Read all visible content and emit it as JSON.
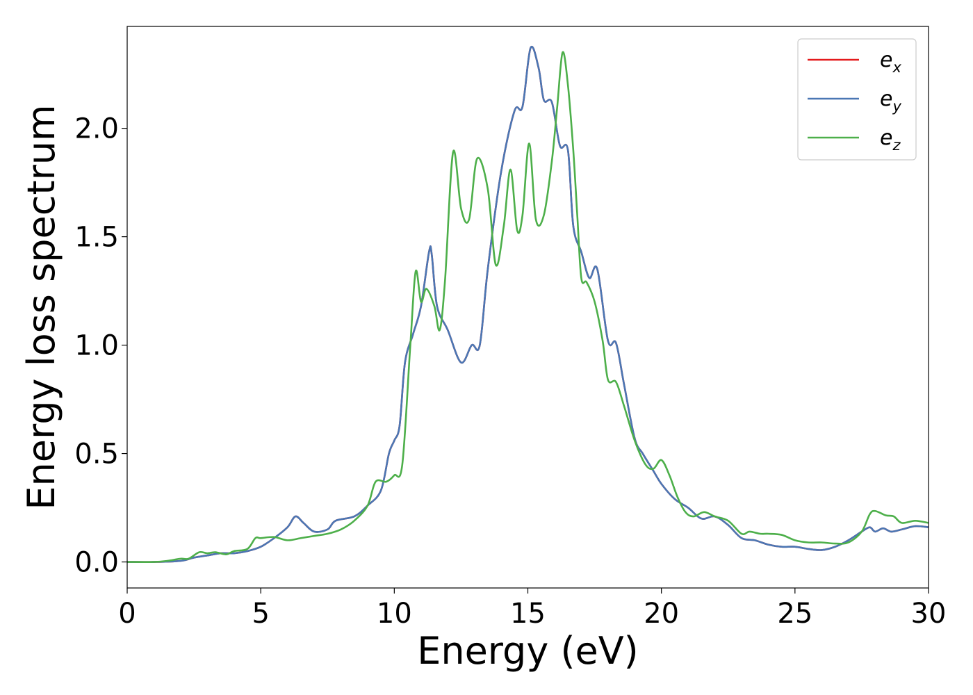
{
  "chart_data": {
    "type": "line",
    "title": "",
    "xlabel": "Energy (eV)",
    "ylabel": "Energy loss spectrum",
    "xlim": [
      0,
      30
    ],
    "ylim": [
      -0.12,
      2.47
    ],
    "xticks": [
      0,
      5,
      10,
      15,
      20,
      25,
      30
    ],
    "yticks": [
      0.0,
      0.5,
      1.0,
      1.5,
      2.0
    ],
    "xtick_labels": [
      "0",
      "5",
      "10",
      "15",
      "20",
      "25",
      "30"
    ],
    "ytick_labels": [
      "0.0",
      "0.5",
      "1.0",
      "1.5",
      "2.0"
    ],
    "grid": false,
    "legend_position": "top-right",
    "series": [
      {
        "name": "e_x",
        "label_base": "e",
        "label_sub": "x",
        "color": "#e41a1c",
        "x": [
          0,
          1,
          2,
          2.5,
          3,
          3.5,
          4,
          4.5,
          5,
          5.5,
          6,
          6.3,
          6.6,
          7,
          7.5,
          7.8,
          8.5,
          9,
          9.5,
          9.8,
          10,
          10.2,
          10.4,
          10.7,
          11,
          11.3,
          11.4,
          11.6,
          12,
          12.5,
          12.9,
          13.2,
          13.5,
          14,
          14.5,
          14.8,
          15.1,
          15.4,
          15.6,
          15.9,
          16.2,
          16.5,
          16.7,
          17,
          17.3,
          17.6,
          18,
          18.3,
          18.6,
          19,
          19.3,
          19.7,
          20,
          20.5,
          21,
          21.5,
          22,
          22.5,
          23,
          23.5,
          24,
          24.5,
          25,
          25.5,
          26,
          26.5,
          27,
          27.5,
          27.8,
          28,
          28.3,
          28.6,
          29,
          29.5,
          30
        ],
        "y": [
          0,
          0,
          0.005,
          0.02,
          0.03,
          0.04,
          0.04,
          0.05,
          0.07,
          0.11,
          0.16,
          0.21,
          0.18,
          0.14,
          0.15,
          0.19,
          0.21,
          0.26,
          0.33,
          0.5,
          0.56,
          0.63,
          0.92,
          1.05,
          1.18,
          1.43,
          1.42,
          1.18,
          1.07,
          0.92,
          1.0,
          1.0,
          1.35,
          1.8,
          2.08,
          2.1,
          2.37,
          2.28,
          2.13,
          2.12,
          1.92,
          1.9,
          1.55,
          1.43,
          1.31,
          1.35,
          1.02,
          1.01,
          0.82,
          0.57,
          0.5,
          0.42,
          0.36,
          0.29,
          0.25,
          0.2,
          0.21,
          0.17,
          0.11,
          0.1,
          0.08,
          0.07,
          0.07,
          0.06,
          0.055,
          0.07,
          0.1,
          0.14,
          0.16,
          0.14,
          0.155,
          0.14,
          0.15,
          0.165,
          0.16
        ]
      },
      {
        "name": "e_y",
        "label_base": "e",
        "label_sub": "y",
        "color": "#4a77b4",
        "x": [
          0,
          1,
          2,
          2.5,
          3,
          3.5,
          4,
          4.5,
          5,
          5.5,
          6,
          6.3,
          6.6,
          7,
          7.5,
          7.8,
          8.5,
          9,
          9.5,
          9.8,
          10,
          10.2,
          10.4,
          10.7,
          11,
          11.3,
          11.4,
          11.6,
          12,
          12.5,
          12.9,
          13.2,
          13.5,
          14,
          14.5,
          14.8,
          15.1,
          15.4,
          15.6,
          15.9,
          16.2,
          16.5,
          16.7,
          17,
          17.3,
          17.6,
          18,
          18.3,
          18.6,
          19,
          19.3,
          19.7,
          20,
          20.5,
          21,
          21.5,
          22,
          22.5,
          23,
          23.5,
          24,
          24.5,
          25,
          25.5,
          26,
          26.5,
          27,
          27.5,
          27.8,
          28,
          28.3,
          28.6,
          29,
          29.5,
          30
        ],
        "y": [
          0,
          0,
          0.005,
          0.02,
          0.03,
          0.04,
          0.04,
          0.05,
          0.07,
          0.11,
          0.16,
          0.21,
          0.18,
          0.14,
          0.15,
          0.19,
          0.21,
          0.26,
          0.33,
          0.5,
          0.56,
          0.63,
          0.92,
          1.05,
          1.18,
          1.43,
          1.42,
          1.18,
          1.07,
          0.92,
          1.0,
          1.0,
          1.35,
          1.8,
          2.08,
          2.1,
          2.37,
          2.28,
          2.13,
          2.12,
          1.92,
          1.9,
          1.55,
          1.43,
          1.31,
          1.35,
          1.02,
          1.01,
          0.82,
          0.57,
          0.5,
          0.42,
          0.36,
          0.29,
          0.25,
          0.2,
          0.21,
          0.17,
          0.11,
          0.1,
          0.08,
          0.07,
          0.07,
          0.06,
          0.055,
          0.07,
          0.1,
          0.14,
          0.16,
          0.14,
          0.155,
          0.14,
          0.15,
          0.165,
          0.16
        ]
      },
      {
        "name": "e_z",
        "label_base": "e",
        "label_sub": "z",
        "color": "#4daf4a",
        "x": [
          0,
          1,
          1.5,
          2,
          2.3,
          2.7,
          3,
          3.3,
          3.7,
          4,
          4.5,
          4.8,
          5,
          5.5,
          6,
          6.5,
          7,
          7.5,
          8,
          8.5,
          9,
          9.3,
          9.7,
          10,
          10.3,
          10.6,
          10.8,
          11,
          11.2,
          11.5,
          11.7,
          11.9,
          12.2,
          12.5,
          12.8,
          13.1,
          13.5,
          13.8,
          14.1,
          14.35,
          14.6,
          14.8,
          15.05,
          15.3,
          15.6,
          15.9,
          16.1,
          16.3,
          16.5,
          16.7,
          16.85,
          17,
          17.2,
          17.5,
          17.8,
          18,
          18.3,
          18.6,
          19,
          19.4,
          19.7,
          20,
          20.3,
          20.6,
          20.9,
          21.2,
          21.6,
          22,
          22.5,
          23,
          23.3,
          23.7,
          24,
          24.5,
          25,
          25.5,
          26,
          26.5,
          27,
          27.5,
          27.8,
          28,
          28.4,
          28.7,
          29,
          29.5,
          30
        ],
        "y": [
          0,
          0,
          0.005,
          0.015,
          0.015,
          0.045,
          0.04,
          0.045,
          0.035,
          0.05,
          0.06,
          0.11,
          0.11,
          0.115,
          0.1,
          0.11,
          0.12,
          0.13,
          0.15,
          0.19,
          0.26,
          0.37,
          0.37,
          0.4,
          0.45,
          1.0,
          1.34,
          1.2,
          1.26,
          1.18,
          1.07,
          1.3,
          1.89,
          1.63,
          1.58,
          1.86,
          1.72,
          1.37,
          1.55,
          1.81,
          1.53,
          1.6,
          1.93,
          1.58,
          1.6,
          1.85,
          2.1,
          2.35,
          2.2,
          1.9,
          1.6,
          1.31,
          1.29,
          1.2,
          1.02,
          0.84,
          0.83,
          0.72,
          0.56,
          0.45,
          0.43,
          0.47,
          0.4,
          0.3,
          0.23,
          0.21,
          0.23,
          0.21,
          0.19,
          0.13,
          0.14,
          0.13,
          0.13,
          0.125,
          0.1,
          0.09,
          0.09,
          0.085,
          0.09,
          0.14,
          0.22,
          0.235,
          0.215,
          0.21,
          0.18,
          0.19,
          0.18
        ]
      }
    ]
  }
}
